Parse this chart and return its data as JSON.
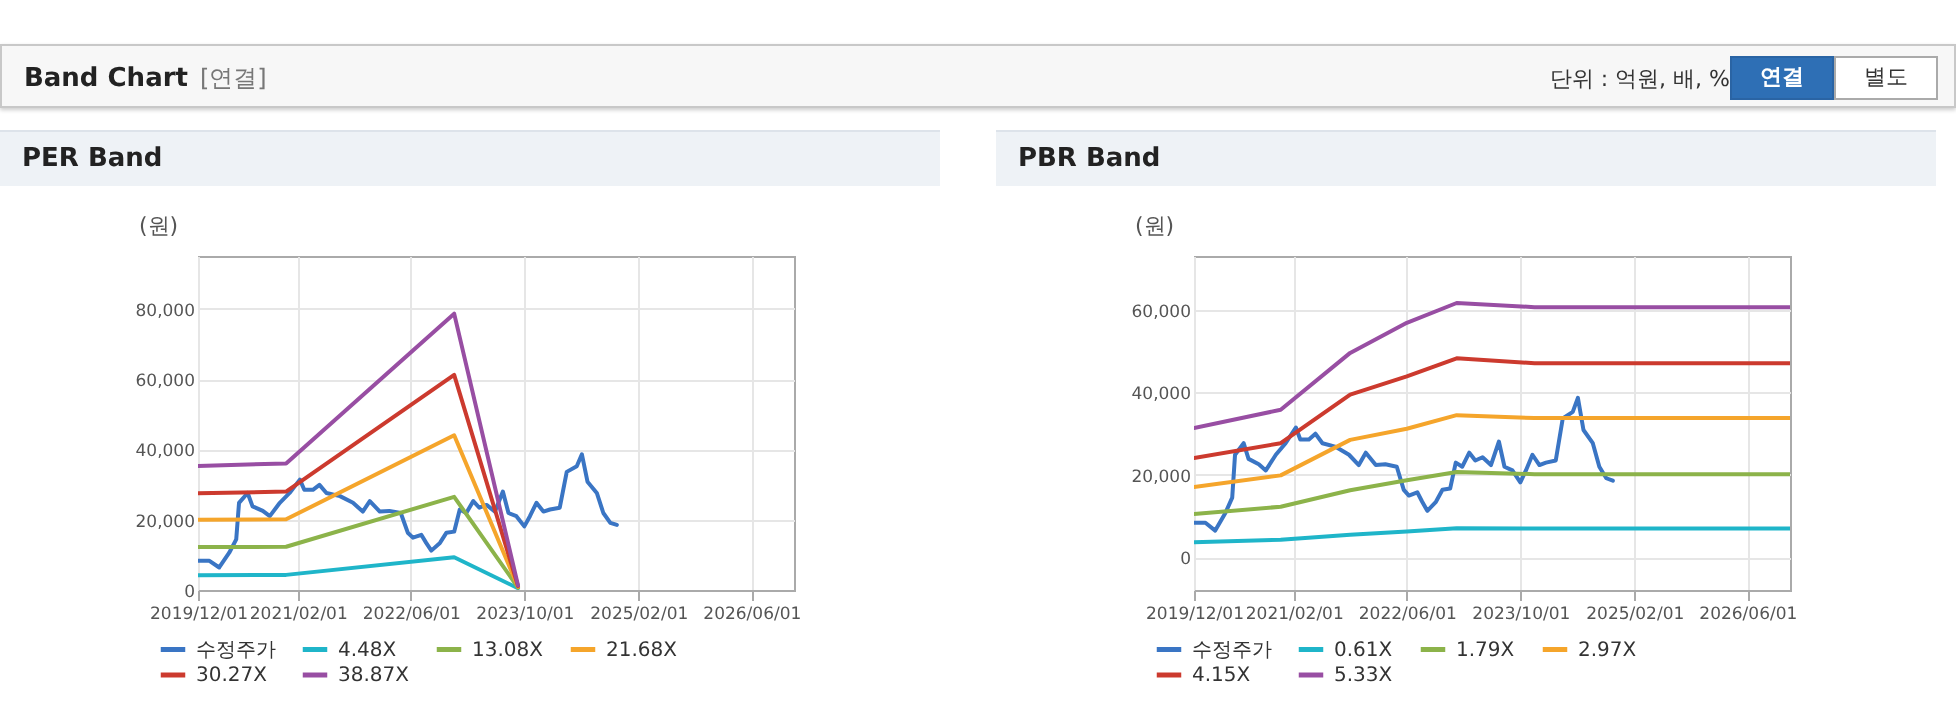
{
  "chart_data": [
    {
      "type": "other",
      "title": "Band Chart",
      "subtitle": "[연결]",
      "annotations": [
        "단위 : 억원, 배, %",
        "연결",
        "별도"
      ]
    },
    {
      "type": "line",
      "title": "PER Band",
      "ylabel": "(원)",
      "grid": true,
      "legend": "bottom",
      "xlim": [
        "2019-12-01",
        "2026-12-01"
      ],
      "xticks": [
        {
          "value": "2019-12-01",
          "label": "2019/12/01"
        },
        {
          "value": "2021-02-01",
          "label": "2021/02/01"
        },
        {
          "value": "2022-06-01",
          "label": "2022/06/01"
        },
        {
          "value": "2023-10-01",
          "label": "2023/10/01"
        },
        {
          "value": "2025-02-01",
          "label": "2025/02/01"
        },
        {
          "value": "2026-06-01",
          "label": "2026/06/01"
        }
      ],
      "ylim": [
        0,
        95000
      ],
      "yticks": [
        {
          "value": 0,
          "label": "0"
        },
        {
          "value": 20000,
          "label": "20,000"
        },
        {
          "value": 40000,
          "label": "40,000"
        },
        {
          "value": 60000,
          "label": "60,000"
        },
        {
          "value": 80000,
          "label": "80,000"
        }
      ],
      "series": [
        {
          "name": "수정주가",
          "color": "#3a75c4",
          "x": [
            "2019-12-01",
            "2020-01-19",
            "2020-03-01",
            "2020-04-13",
            "2020-05-13",
            "2020-05-25",
            "2020-07-01",
            "2020-07-22",
            "2020-09-04",
            "2020-10-04",
            "2020-11-16",
            "2020-12-28",
            "2021-02-10",
            "2021-03-01",
            "2021-04-07",
            "2021-05-05",
            "2021-06-04",
            "2021-08-01",
            "2021-09-26",
            "2021-11-07",
            "2021-12-07",
            "2022-01-19",
            "2022-03-01",
            "2022-04-19",
            "2022-05-19",
            "2022-06-10",
            "2022-07-16",
            "2022-08-06",
            "2022-08-28",
            "2022-10-04",
            "2022-11-01",
            "2022-12-04",
            "2022-12-28",
            "2023-01-25",
            "2023-02-24",
            "2023-03-22",
            "2023-04-22",
            "2023-05-28",
            "2023-07-01",
            "2023-07-25",
            "2023-08-28",
            "2023-10-01",
            "2023-10-25",
            "2023-11-22",
            "2023-12-22",
            "2024-01-19",
            "2024-03-01",
            "2024-03-31",
            "2024-05-13",
            "2024-06-04",
            "2024-06-28",
            "2024-08-07",
            "2024-09-04",
            "2024-10-04",
            "2024-11-01"
          ],
          "values": [
            8300,
            8300,
            6400,
            10600,
            14400,
            24800,
            27600,
            23800,
            22500,
            21000,
            24800,
            27600,
            31400,
            28500,
            28500,
            29900,
            27600,
            26700,
            24800,
            22300,
            25300,
            22300,
            22500,
            21900,
            16300,
            14900,
            15700,
            13400,
            11200,
            13400,
            16300,
            16600,
            22900,
            21900,
            25300,
            23400,
            24200,
            22300,
            28000,
            21900,
            21000,
            18100,
            21000,
            24800,
            22300,
            22900,
            23400,
            33600,
            35200,
            38600,
            30800,
            27600,
            21900,
            19100,
            18500
          ]
        },
        {
          "name": "4.48X",
          "color": "#1fb5c9",
          "x": [
            "2019-12-01",
            "2020-12-13",
            "2022-12-04",
            "2023-09-04"
          ],
          "values": [
            4200,
            4300,
            9300,
            500
          ]
        },
        {
          "name": "13.08X",
          "color": "#8cb34a",
          "x": [
            "2019-12-01",
            "2020-12-13",
            "2022-12-04",
            "2023-09-04"
          ],
          "values": [
            12200,
            12300,
            26500,
            700
          ]
        },
        {
          "name": "21.68X",
          "color": "#f5a52b",
          "x": [
            "2019-12-01",
            "2020-12-13",
            "2022-12-04",
            "2023-09-04"
          ],
          "values": [
            20000,
            20100,
            44000,
            900
          ]
        },
        {
          "name": "30.27X",
          "color": "#cc3a2e",
          "x": [
            "2019-12-01",
            "2020-12-13",
            "2022-12-04",
            "2023-09-04"
          ],
          "values": [
            27500,
            28000,
            61200,
            1100
          ]
        },
        {
          "name": "38.87X",
          "color": "#984ea3",
          "x": [
            "2019-12-01",
            "2020-12-13",
            "2022-12-04",
            "2023-09-04"
          ],
          "values": [
            35300,
            36000,
            78600,
            1300
          ]
        }
      ]
    },
    {
      "type": "line",
      "title": "PBR Band",
      "ylabel": "(원)",
      "grid": true,
      "legend": "bottom",
      "xlim": [
        "2019-12-01",
        "2026-12-01"
      ],
      "xticks": [
        {
          "value": "2019-12-01",
          "label": "2019/12/01"
        },
        {
          "value": "2021-02-01",
          "label": "2021/02/01"
        },
        {
          "value": "2022-06-01",
          "label": "2022/06/01"
        },
        {
          "value": "2023-10-01",
          "label": "2023/10/01"
        },
        {
          "value": "2025-02-01",
          "label": "2025/02/01"
        },
        {
          "value": "2026-06-01",
          "label": "2026/06/01"
        }
      ],
      "ylim": [
        -8000,
        73000
      ],
      "yticks": [
        {
          "value": 0,
          "label": "0"
        },
        {
          "value": 20000,
          "label": "20,000"
        },
        {
          "value": 40000,
          "label": "40,000"
        },
        {
          "value": 60000,
          "label": "60,000"
        }
      ],
      "series": [
        {
          "name": "수정주가",
          "color": "#3a75c4",
          "x": [
            "2019-12-01",
            "2020-01-19",
            "2020-03-01",
            "2020-04-13",
            "2020-05-13",
            "2020-05-25",
            "2020-07-01",
            "2020-07-22",
            "2020-09-04",
            "2020-10-04",
            "2020-11-16",
            "2020-12-28",
            "2021-02-10",
            "2021-03-01",
            "2021-04-07",
            "2021-05-05",
            "2021-06-04",
            "2021-08-01",
            "2021-09-26",
            "2021-11-07",
            "2021-12-07",
            "2022-01-19",
            "2022-03-01",
            "2022-04-19",
            "2022-05-19",
            "2022-06-10",
            "2022-07-16",
            "2022-08-06",
            "2022-08-28",
            "2022-10-04",
            "2022-11-01",
            "2022-12-04",
            "2022-12-28",
            "2023-01-25",
            "2023-02-24",
            "2023-03-22",
            "2023-04-22",
            "2023-05-28",
            "2023-07-01",
            "2023-07-25",
            "2023-08-28",
            "2023-10-01",
            "2023-10-25",
            "2023-11-22",
            "2023-12-22",
            "2024-01-19",
            "2024-03-01",
            "2024-03-31",
            "2024-05-13",
            "2024-06-04",
            "2024-06-28",
            "2024-08-07",
            "2024-09-04",
            "2024-10-04",
            "2024-11-01"
          ],
          "values": [
            8300,
            8300,
            6400,
            10600,
            14400,
            24800,
            27600,
            23800,
            22500,
            21000,
            24800,
            27600,
            31400,
            28500,
            28500,
            29900,
            27600,
            26700,
            24800,
            22300,
            25300,
            22300,
            22500,
            21900,
            16300,
            14900,
            15700,
            13400,
            11200,
            13400,
            16300,
            16600,
            22900,
            21900,
            25300,
            23400,
            24200,
            22300,
            28000,
            21900,
            21000,
            18100,
            21000,
            24800,
            22300,
            22900,
            23400,
            33600,
            35200,
            38600,
            30800,
            27600,
            21900,
            19100,
            18500
          ]
        },
        {
          "name": "0.61X",
          "color": "#1fb5c9",
          "x": [
            "2019-12-01",
            "2020-12-07",
            "2021-10-01",
            "2022-06-01",
            "2023-01-01",
            "2023-12-01",
            "2026-12-01"
          ],
          "values": [
            3600,
            4200,
            5400,
            6200,
            7000,
            6900,
            6900
          ]
        },
        {
          "name": "1.79X",
          "color": "#8cb34a",
          "x": [
            "2019-12-01",
            "2020-12-07",
            "2021-10-01",
            "2022-06-01",
            "2023-01-01",
            "2023-12-01",
            "2026-12-01"
          ],
          "values": [
            10400,
            12200,
            16200,
            18600,
            20600,
            20100,
            20100
          ]
        },
        {
          "name": "2.97X",
          "color": "#f5a52b",
          "x": [
            "2019-12-01",
            "2020-12-07",
            "2021-10-01",
            "2022-06-01",
            "2023-01-01",
            "2023-12-01",
            "2026-12-01"
          ],
          "values": [
            17000,
            19800,
            28400,
            31100,
            34400,
            33700,
            33700
          ]
        },
        {
          "name": "4.15X",
          "color": "#cc3a2e",
          "x": [
            "2019-12-01",
            "2020-12-07",
            "2021-10-01",
            "2022-06-01",
            "2023-01-01",
            "2023-12-01",
            "2026-12-01"
          ],
          "values": [
            24000,
            27600,
            39400,
            43800,
            48200,
            47000,
            47000
          ]
        },
        {
          "name": "5.33X",
          "color": "#984ea3",
          "x": [
            "2019-12-01",
            "2020-12-07",
            "2021-10-01",
            "2022-06-01",
            "2023-01-01",
            "2023-12-01",
            "2026-12-01"
          ],
          "values": [
            31300,
            35700,
            49500,
            56800,
            61600,
            60600,
            60600
          ]
        }
      ]
    }
  ]
}
